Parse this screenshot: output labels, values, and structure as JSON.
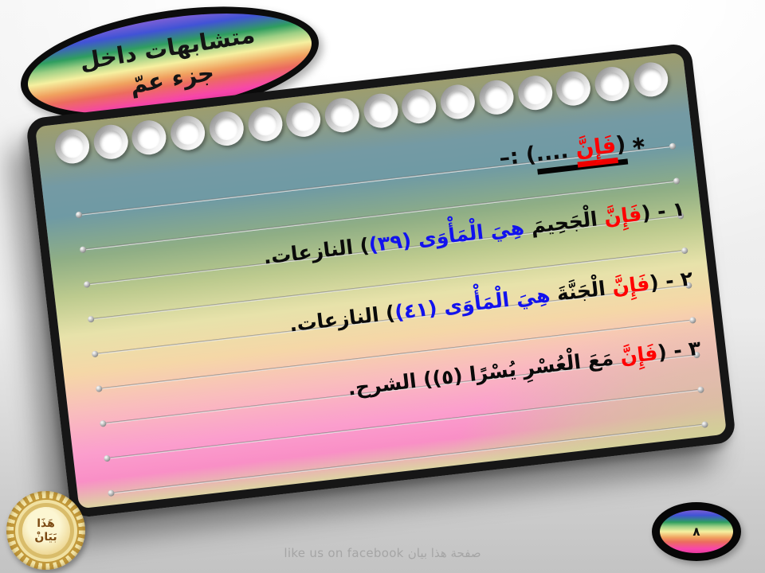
{
  "title_bubble": {
    "line1": "متشابهات داخل",
    "line2": "جزء عمّ"
  },
  "notebook": {
    "holes_count": 16,
    "ruled_lines_count": 9,
    "header": {
      "star": "∗",
      "open": "(",
      "keyword": "فَإِنَّ",
      "dots": " ....",
      "close": ") :–"
    },
    "lines": [
      {
        "num": "١ - ",
        "open": "(",
        "keyword": "فَإِنَّ",
        "mid": " الْجَحِيمَ ",
        "blue": "هِيَ الْمَأْوَى (٣٩)",
        "close": ") ",
        "source": "النازعات."
      },
      {
        "num": "٢ - ",
        "open": "(",
        "keyword": "فَإِنَّ",
        "mid": " الْجَنَّةَ ",
        "blue": "هِيَ الْمَأْوَى (٤١)",
        "close": ") ",
        "source": "النازعات."
      },
      {
        "num": "٣ - ",
        "open": "(",
        "keyword": "فَإِنَّ",
        "mid": " مَعَ الْعُسْرِ يُسْرًا (٥)",
        "blue": "",
        "close": ") ",
        "source": "الشرح."
      }
    ],
    "colors": {
      "keyword_red": "#ff0000",
      "verse_blue": "#1212ee",
      "ink": "#0a0a0a"
    }
  },
  "seal": {
    "line1": "هَذَا",
    "line2": "بَيَانْ"
  },
  "page_number": "٨",
  "footer": "like us on facebook صفحة هذا بيان"
}
